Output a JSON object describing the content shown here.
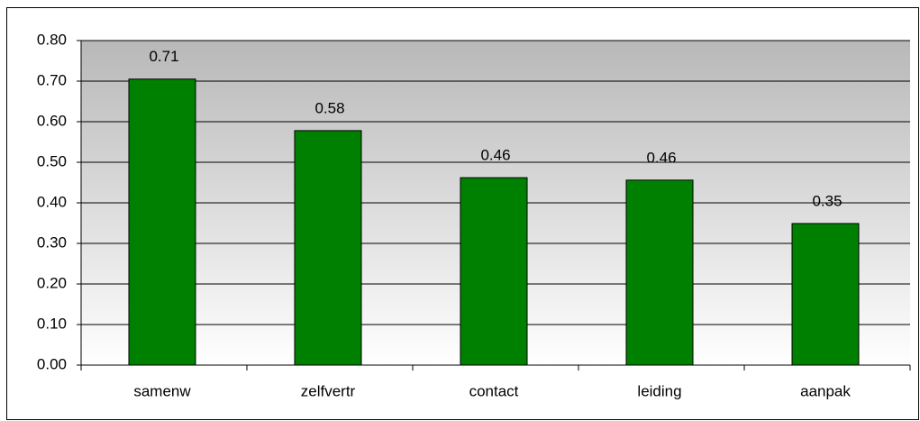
{
  "chart_data": {
    "type": "bar",
    "categories": [
      "samenw",
      "zelfvertr",
      "contact",
      "leiding",
      "aanpak"
    ],
    "values": [
      0.705,
      0.578,
      0.462,
      0.456,
      0.349
    ],
    "value_labels": [
      "0.71",
      "0.58",
      "0.46",
      "0.46",
      "0.35"
    ],
    "color": "#008000",
    "ylim": [
      0,
      0.8
    ],
    "yticks": [
      {
        "value": 0,
        "label": "0.00"
      },
      {
        "value": 0.1,
        "label": "0.10"
      },
      {
        "value": 0.2,
        "label": "0.20"
      },
      {
        "value": 0.3,
        "label": "0.30"
      },
      {
        "value": 0.4,
        "label": "0.40"
      },
      {
        "value": 0.5,
        "label": "0.50"
      },
      {
        "value": 0.6,
        "label": "0.60"
      },
      {
        "value": 0.7,
        "label": "0.70"
      },
      {
        "value": 0.8,
        "label": "0.80"
      }
    ],
    "grid": true
  }
}
